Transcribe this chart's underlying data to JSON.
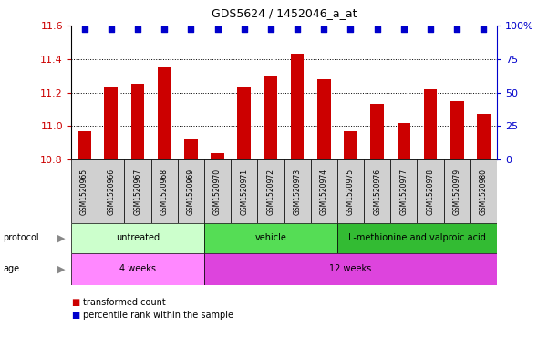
{
  "title": "GDS5624 / 1452046_a_at",
  "samples": [
    "GSM1520965",
    "GSM1520966",
    "GSM1520967",
    "GSM1520968",
    "GSM1520969",
    "GSM1520970",
    "GSM1520971",
    "GSM1520972",
    "GSM1520973",
    "GSM1520974",
    "GSM1520975",
    "GSM1520976",
    "GSM1520977",
    "GSM1520978",
    "GSM1520979",
    "GSM1520980"
  ],
  "bar_values": [
    10.97,
    11.23,
    11.25,
    11.35,
    10.92,
    10.84,
    11.23,
    11.3,
    11.43,
    11.28,
    10.97,
    11.13,
    11.02,
    11.22,
    11.15,
    11.07
  ],
  "percentile_values": [
    97,
    97,
    97,
    97,
    97,
    97,
    97,
    97,
    97,
    97,
    97,
    97,
    97,
    97,
    97,
    97
  ],
  "ylim": [
    10.8,
    11.6
  ],
  "yticks": [
    10.8,
    11.0,
    11.2,
    11.4,
    11.6
  ],
  "right_yticks": [
    0,
    25,
    50,
    75,
    100
  ],
  "bar_color": "#cc0000",
  "dot_color": "#0000cc",
  "bg_color": "#ffffff",
  "protocol_groups": [
    {
      "label": "untreated",
      "start": 0,
      "end": 5,
      "color": "#ccffcc"
    },
    {
      "label": "vehicle",
      "start": 5,
      "end": 10,
      "color": "#55dd55"
    },
    {
      "label": "L-methionine and valproic acid",
      "start": 10,
      "end": 16,
      "color": "#33bb33"
    }
  ],
  "age_groups": [
    {
      "label": "4 weeks",
      "start": 0,
      "end": 5,
      "color": "#ff88ff"
    },
    {
      "label": "12 weeks",
      "start": 5,
      "end": 16,
      "color": "#dd44dd"
    }
  ],
  "legend_items": [
    {
      "label": "transformed count",
      "color": "#cc0000"
    },
    {
      "label": "percentile rank within the sample",
      "color": "#0000cc"
    }
  ]
}
